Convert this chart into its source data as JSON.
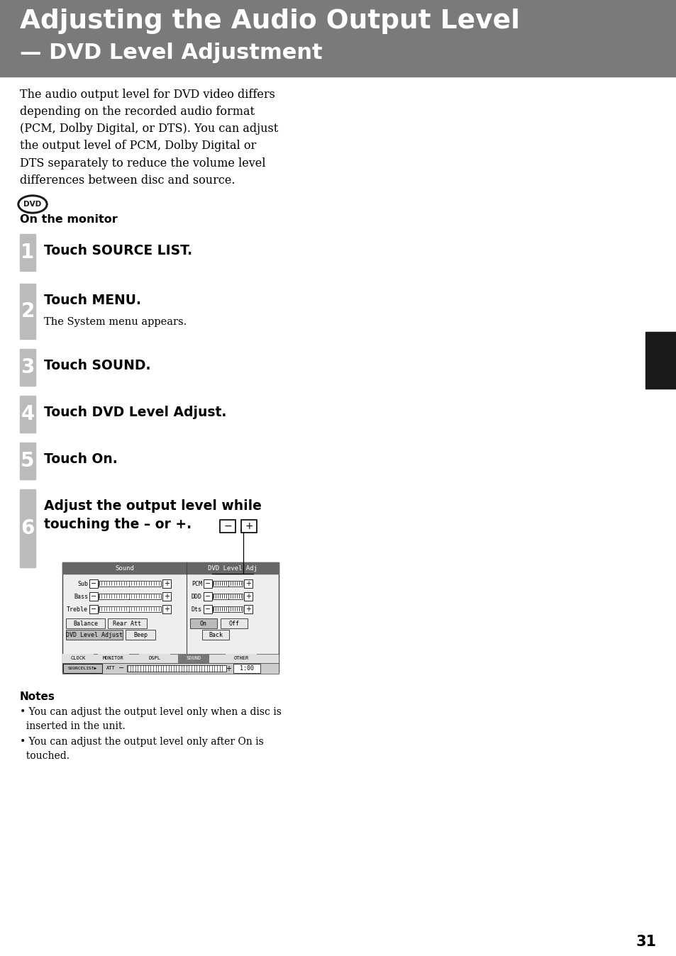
{
  "bg_color": "#ffffff",
  "header_bg": "#7a7a7a",
  "header_line1": "Adjusting the Audio Output Level",
  "header_line2": "— DVD Level Adjustment",
  "header_text_color": "#ffffff",
  "body_text_color": "#000000",
  "intro_text": "The audio output level for DVD video differs\ndepending on the recorded audio format\n(PCM, Dolby Digital, or DTS). You can adjust\nthe output level of PCM, Dolby Digital or\nDTS separately to reduce the volume level\ndifferences between disc and source.",
  "on_monitor_label": "On the monitor",
  "steps": [
    {
      "num": "1",
      "text": "Touch SOURCE LIST.",
      "sub": null
    },
    {
      "num": "2",
      "text": "Touch MENU.",
      "sub": "The System menu appears."
    },
    {
      "num": "3",
      "text": "Touch SOUND.",
      "sub": null
    },
    {
      "num": "4",
      "text": "Touch DVD Level Adjust.",
      "sub": null
    },
    {
      "num": "5",
      "text": "Touch On.",
      "sub": null
    },
    {
      "num": "6",
      "text": "Adjust the output level while\ntouching the – or +.",
      "sub": null
    }
  ],
  "step_bar_color": "#bbbbbb",
  "notes_title": "Notes",
  "notes": [
    "You can adjust the output level only when a disc is\n  inserted in the unit.",
    "You can adjust the output level only after On is\n  touched."
  ],
  "page_number": "31",
  "sidebar_color": "#1a1a1a"
}
